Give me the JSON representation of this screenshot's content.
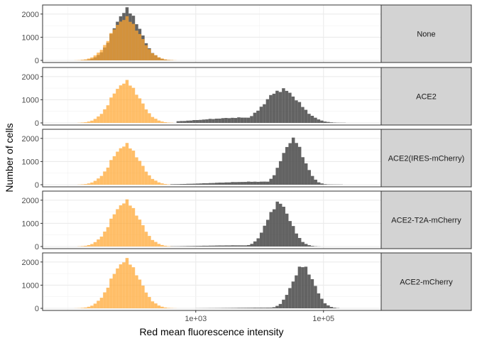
{
  "chart_data": {
    "type": "histogram",
    "xlabel": "Red mean fluorescence intensity",
    "ylabel": "Number of cells",
    "x_scale": "log10",
    "xlim": [
      4,
      800000
    ],
    "ylim": [
      0,
      2300
    ],
    "x_tick_labels": [
      "1e+03",
      "1e+05"
    ],
    "x_tick_values": [
      1000,
      100000
    ],
    "y_tick_values": [
      0,
      1000,
      2000
    ],
    "bin_width_log10": 0.05,
    "grid": true,
    "legend": "none",
    "colors": {
      "transfected": "#4d4d4d",
      "control": "#ffa52e",
      "strip": "#d3d3d3",
      "grid": "#ebebeb",
      "border": "#333333"
    },
    "panels": [
      {
        "label": "None",
        "series": [
          {
            "color": "#4d4d4d",
            "mu_log10": 1.92,
            "sigma": 0.21,
            "peak": 2150,
            "tail": null,
            "x_range": [
              5,
              500
            ]
          },
          {
            "color": "#ffa52e",
            "mu_log10": 1.9,
            "sigma": 0.23,
            "peak": 1800,
            "tail": null,
            "x_range": [
              5,
              500
            ]
          }
        ]
      },
      {
        "label": "ACE2",
        "series": [
          {
            "color": "#ffa52e",
            "mu_log10": 1.9,
            "sigma": 0.22,
            "peak": 1750,
            "tail": null,
            "x_range": [
              5,
              500
            ]
          },
          {
            "color": "#4d4d4d",
            "mu_log10": 4.35,
            "sigma": 0.27,
            "peak": 1430,
            "tail": {
              "mu_log10": 3.8,
              "sigma": 0.7,
              "peak": 230
            },
            "x_range": [
              500,
              200000
            ]
          }
        ]
      },
      {
        "label": "ACE2(IRES-mCherry)",
        "series": [
          {
            "color": "#ffa52e",
            "mu_log10": 1.9,
            "sigma": 0.22,
            "peak": 1700,
            "tail": null,
            "x_range": [
              5,
              500
            ]
          },
          {
            "color": "#4d4d4d",
            "mu_log10": 4.52,
            "sigma": 0.17,
            "peak": 1930,
            "tail": {
              "mu_log10": 4.0,
              "sigma": 0.7,
              "peak": 130
            },
            "x_range": [
              400,
              200000
            ]
          }
        ]
      },
      {
        "label": "ACE2-T2A-mCherry",
        "series": [
          {
            "color": "#ffa52e",
            "mu_log10": 1.9,
            "sigma": 0.22,
            "peak": 1920,
            "tail": null,
            "x_range": [
              5,
              500
            ]
          },
          {
            "color": "#4d4d4d",
            "mu_log10": 4.3,
            "sigma": 0.18,
            "peak": 1860,
            "tail": {
              "mu_log10": 3.7,
              "sigma": 0.6,
              "peak": 50
            },
            "x_range": [
              400,
              300000
            ]
          }
        ]
      },
      {
        "label": "ACE2-mCherry",
        "series": [
          {
            "color": "#ffa52e",
            "mu_log10": 1.9,
            "sigma": 0.22,
            "peak": 2050,
            "tail": null,
            "x_range": [
              5,
              500
            ]
          },
          {
            "color": "#4d4d4d",
            "mu_log10": 4.68,
            "sigma": 0.17,
            "peak": 1800,
            "tail": {
              "mu_log10": 4.2,
              "sigma": 0.6,
              "peak": 30
            },
            "x_range": [
              500,
              400000
            ]
          }
        ]
      }
    ]
  }
}
